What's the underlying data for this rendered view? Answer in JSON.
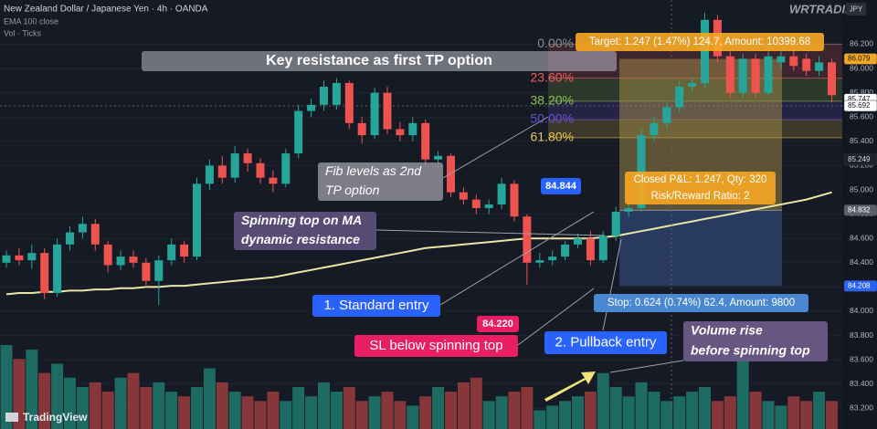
{
  "chart_data": {
    "type": "candlestick",
    "title": "New Zealand Dollar / Japanese Yen · 4h · OANDA",
    "indicators": [
      "EMA 100 close",
      "Vol · Ticks"
    ],
    "brand": "TradingView",
    "watermark": "WRTRADING",
    "currency": "JPY",
    "ylim": [
      83.03,
      86.564
    ],
    "yticks": [
      {
        "value": 86.2,
        "label": "86.200"
      },
      {
        "value": 86.0,
        "label": "86.000"
      },
      {
        "value": 85.8,
        "label": "85.800"
      },
      {
        "value": 85.6,
        "label": "85.600"
      },
      {
        "value": 85.4,
        "label": "85.400"
      },
      {
        "value": 85.2,
        "label": "85.200"
      },
      {
        "value": 85.0,
        "label": "85.000"
      },
      {
        "value": 84.8,
        "label": "84.800"
      },
      {
        "value": 84.6,
        "label": "84.600"
      },
      {
        "value": 84.4,
        "label": "84.400"
      },
      {
        "value": 84.2,
        "label": "84.200"
      },
      {
        "value": 84.0,
        "label": "84.000"
      },
      {
        "value": 83.8,
        "label": "83.800"
      },
      {
        "value": 83.6,
        "label": "83.600"
      },
      {
        "value": 83.4,
        "label": "83.400"
      },
      {
        "value": 83.2,
        "label": "83.200"
      }
    ],
    "grid": true,
    "up_color": "#26a69a",
    "down_color": "#ef5350",
    "volume_up_color": "#1d6b62",
    "volume_down_color": "#873739",
    "ohlc": [
      [
        84.4,
        84.5,
        84.36,
        84.46
      ],
      [
        84.46,
        84.52,
        84.38,
        84.42
      ],
      [
        84.42,
        84.55,
        84.35,
        84.48
      ],
      [
        84.48,
        84.52,
        84.1,
        84.15
      ],
      [
        84.15,
        84.6,
        84.12,
        84.55
      ],
      [
        84.55,
        84.7,
        84.5,
        84.65
      ],
      [
        84.65,
        84.78,
        84.6,
        84.72
      ],
      [
        84.72,
        84.76,
        84.5,
        84.55
      ],
      [
        84.55,
        84.58,
        84.32,
        84.38
      ],
      [
        84.38,
        84.5,
        84.34,
        84.45
      ],
      [
        84.45,
        84.5,
        84.36,
        84.4
      ],
      [
        84.4,
        84.44,
        84.2,
        84.25
      ],
      [
        84.25,
        84.46,
        84.05,
        84.42
      ],
      [
        84.42,
        84.6,
        84.38,
        84.55
      ],
      [
        84.55,
        84.58,
        84.4,
        84.45
      ],
      [
        84.45,
        85.1,
        84.42,
        85.05
      ],
      [
        85.05,
        85.25,
        85.0,
        85.2
      ],
      [
        85.2,
        85.28,
        85.05,
        85.1
      ],
      [
        85.1,
        85.36,
        85.06,
        85.3
      ],
      [
        85.3,
        85.34,
        85.15,
        85.22
      ],
      [
        85.22,
        85.26,
        85.05,
        85.1
      ],
      [
        85.1,
        85.16,
        84.98,
        85.05
      ],
      [
        85.05,
        85.34,
        85.02,
        85.3
      ],
      [
        85.3,
        85.7,
        85.26,
        85.65
      ],
      [
        85.65,
        85.75,
        85.6,
        85.7
      ],
      [
        85.7,
        85.9,
        85.65,
        85.85
      ],
      [
        85.7,
        85.92,
        85.66,
        85.88
      ],
      [
        85.88,
        85.9,
        85.5,
        85.55
      ],
      [
        85.55,
        85.6,
        85.38,
        85.45
      ],
      [
        85.45,
        85.84,
        85.42,
        85.8
      ],
      [
        85.8,
        85.85,
        85.46,
        85.5
      ],
      [
        85.5,
        85.56,
        85.4,
        85.45
      ],
      [
        85.45,
        85.6,
        85.4,
        85.55
      ],
      [
        85.55,
        85.58,
        85.2,
        85.25
      ],
      [
        85.25,
        85.32,
        85.18,
        85.28
      ],
      [
        85.28,
        85.3,
        84.94,
        84.98
      ],
      [
        84.98,
        85.02,
        84.88,
        84.92
      ],
      [
        84.92,
        84.96,
        84.8,
        84.85
      ],
      [
        84.85,
        84.92,
        84.8,
        84.88
      ],
      [
        84.88,
        85.1,
        84.84,
        85.05
      ],
      [
        85.05,
        85.08,
        84.74,
        84.78
      ],
      [
        84.78,
        84.8,
        84.22,
        84.4
      ],
      [
        84.4,
        84.48,
        84.36,
        84.42
      ],
      [
        84.42,
        84.5,
        84.38,
        84.45
      ],
      [
        84.45,
        84.58,
        84.42,
        84.55
      ],
      [
        84.55,
        84.64,
        84.52,
        84.6
      ],
      [
        84.6,
        84.66,
        84.38,
        84.42
      ],
      [
        84.42,
        84.66,
        84.4,
        84.62
      ],
      [
        84.62,
        84.86,
        84.58,
        84.82
      ],
      [
        84.82,
        84.9,
        84.78,
        84.85
      ],
      [
        84.85,
        85.5,
        84.82,
        85.45
      ],
      [
        85.45,
        85.6,
        85.4,
        85.55
      ],
      [
        85.55,
        85.72,
        85.5,
        85.68
      ],
      [
        85.68,
        85.9,
        85.64,
        85.85
      ],
      [
        85.85,
        85.92,
        85.8,
        85.88
      ],
      [
        85.88,
        86.46,
        85.84,
        86.4
      ],
      [
        86.4,
        86.44,
        86.05,
        86.1
      ],
      [
        86.1,
        86.14,
        85.76,
        85.8
      ],
      [
        85.8,
        86.12,
        85.76,
        86.08
      ],
      [
        86.08,
        86.12,
        85.76,
        85.8
      ],
      [
        85.8,
        86.14,
        85.78,
        86.1
      ],
      [
        86.05,
        86.14,
        86.0,
        86.1
      ],
      [
        86.1,
        86.16,
        85.98,
        86.02
      ],
      [
        86.08,
        86.12,
        85.94,
        85.98
      ],
      [
        85.98,
        86.1,
        85.94,
        86.05
      ],
      [
        86.05,
        86.08,
        85.72,
        85.78
      ]
    ],
    "volume": [
      90,
      75,
      85,
      60,
      70,
      55,
      45,
      50,
      40,
      55,
      60,
      45,
      50,
      40,
      35,
      45,
      65,
      50,
      40,
      35,
      30,
      40,
      30,
      45,
      35,
      50,
      40,
      45,
      30,
      35,
      40,
      30,
      25,
      35,
      45,
      40,
      50,
      55,
      30,
      35,
      40,
      45,
      20,
      25,
      30,
      35,
      40,
      60,
      45,
      35,
      50,
      40,
      30,
      35,
      40,
      45,
      30,
      35,
      75,
      40,
      30,
      25,
      35,
      30,
      40,
      30
    ],
    "ma": {
      "color": "#ebe6a5",
      "values": [
        84.14,
        84.15,
        84.15,
        84.16,
        84.16,
        84.17,
        84.17,
        84.18,
        84.18,
        84.19,
        84.19,
        84.2,
        84.2,
        84.21,
        84.21,
        84.22,
        84.23,
        84.24,
        84.25,
        84.26,
        84.27,
        84.28,
        84.3,
        84.32,
        84.34,
        84.36,
        84.38,
        84.4,
        84.42,
        84.44,
        84.46,
        84.48,
        84.5,
        84.52,
        84.53,
        84.54,
        84.55,
        84.56,
        84.57,
        84.58,
        84.59,
        84.6,
        84.6,
        84.6,
        84.6,
        84.6,
        84.6,
        84.61,
        84.62,
        84.64,
        84.66,
        84.68,
        84.7,
        84.72,
        84.74,
        84.76,
        84.78,
        84.8,
        84.82,
        84.84,
        84.86,
        84.88,
        84.9,
        84.92,
        84.95,
        84.98
      ]
    },
    "fib_levels": [
      {
        "label": "0.00%",
        "price": 86.2,
        "color": "#8a8d96"
      },
      {
        "label": "23.60%",
        "price": 85.92,
        "color": "#f05a5a"
      },
      {
        "label": "38.20%",
        "price": 85.73,
        "color": "#8bc34a"
      },
      {
        "label": "50.00%",
        "price": 85.58,
        "color": "#6a4fd0"
      },
      {
        "label": "61.80%",
        "price": 85.43,
        "color": "#e8c547"
      }
    ],
    "price_labels": [
      {
        "value": 85.747,
        "color": "#ffffff",
        "text_color": "#131722"
      },
      {
        "value": 85.692,
        "color": "#ffffff",
        "text_color": "#131722"
      },
      {
        "value": 85.249,
        "color": "#1e222d",
        "text_color": "#d1d4dc"
      }
    ],
    "position": {
      "target": 86.079,
      "entry": 84.832,
      "stop": 84.208,
      "target_text": "Target: 1.247 (1.47%) 124.7, Amount: 10399.68",
      "pnl_text": [
        "Closed P&L: 1.247, Qty: 320",
        "Risk/Reward Ratio: 2"
      ],
      "stop_text": "Stop: 0.624 (0.74%) 62.4, Amount: 9800"
    },
    "markers": [
      {
        "value": 84.844,
        "label": "84.844",
        "color": "#2962ff"
      },
      {
        "value": 84.22,
        "label": "84.220",
        "color": "#e91e63"
      }
    ],
    "annotations": {
      "key_resistance": "Key resistance as first TP option",
      "fib": [
        "Fib levels as 2nd",
        "TP option"
      ],
      "spinning_top": [
        "Spinning top on MA",
        "dynamic resistance"
      ],
      "standard_entry": "1. Standard entry",
      "sl": "SL below spinning top",
      "pullback_entry": "2. Pullback entry",
      "volume_rise": [
        "Volume rise",
        "before spinning top"
      ]
    }
  }
}
